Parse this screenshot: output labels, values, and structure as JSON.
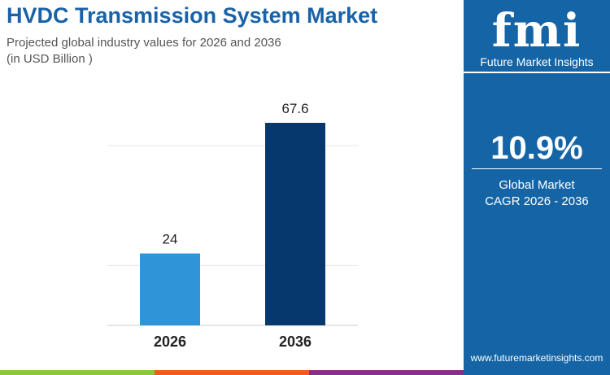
{
  "header": {
    "title": "HVDC Transmission System Market",
    "subtitle": "Projected global industry values for 2026 and 2036",
    "unit": "(in USD Billion )"
  },
  "panel": {
    "logo_text": "fmi",
    "brand": "Future Market Insights",
    "cagr": "10.9%",
    "cagr_label1": "Global Market",
    "cagr_label2": "CAGR 2026 - 2036",
    "url": "www.futuremarketinsights.com"
  },
  "colors": {
    "bar_2026": "#2f95d8",
    "bar_2036": "#06386e",
    "panel": "#1565a6",
    "title": "#1a62a8",
    "stripes": [
      "#8cc63f",
      "#f15a24",
      "#8e2c8a"
    ]
  },
  "chart_data": {
    "type": "bar",
    "categories": [
      "2026",
      "2036"
    ],
    "values": [
      24,
      67.6
    ],
    "data_labels": [
      "24",
      "67.6"
    ],
    "ylim": [
      0,
      75
    ],
    "grid": true,
    "legend": "none"
  }
}
